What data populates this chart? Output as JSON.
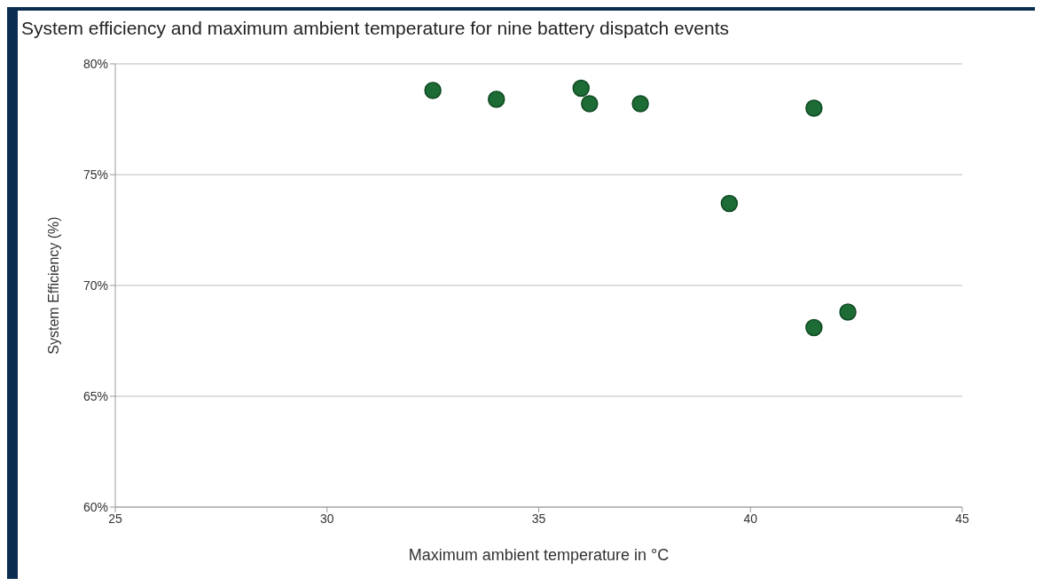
{
  "chart_data": {
    "type": "scatter",
    "title": "System efficiency and maximum ambient temperature for nine battery dispatch events",
    "xlabel": "Maximum ambient temperature in °C",
    "ylabel": "System Efficiency (%)",
    "x": [
      32.5,
      34.0,
      36.0,
      36.2,
      37.4,
      41.5,
      39.5,
      41.5,
      42.3
    ],
    "series": [
      {
        "color": "#1d6b35",
        "values": [
          78.8,
          78.4,
          78.9,
          78.2,
          78.2,
          78.0,
          73.7,
          68.1,
          68.8
        ]
      }
    ],
    "xlim": [
      25,
      45
    ],
    "xticks": [
      25,
      30,
      35,
      40,
      45
    ],
    "ylim": [
      60,
      80
    ],
    "yticks": [
      {
        "value": 60,
        "label": "60%"
      },
      {
        "value": 65,
        "label": "65%"
      },
      {
        "value": 70,
        "label": "70%"
      },
      {
        "value": 75,
        "label": "75%"
      },
      {
        "value": 80,
        "label": "80%"
      }
    ],
    "grid": "y",
    "marker": "circle",
    "legend": false
  }
}
